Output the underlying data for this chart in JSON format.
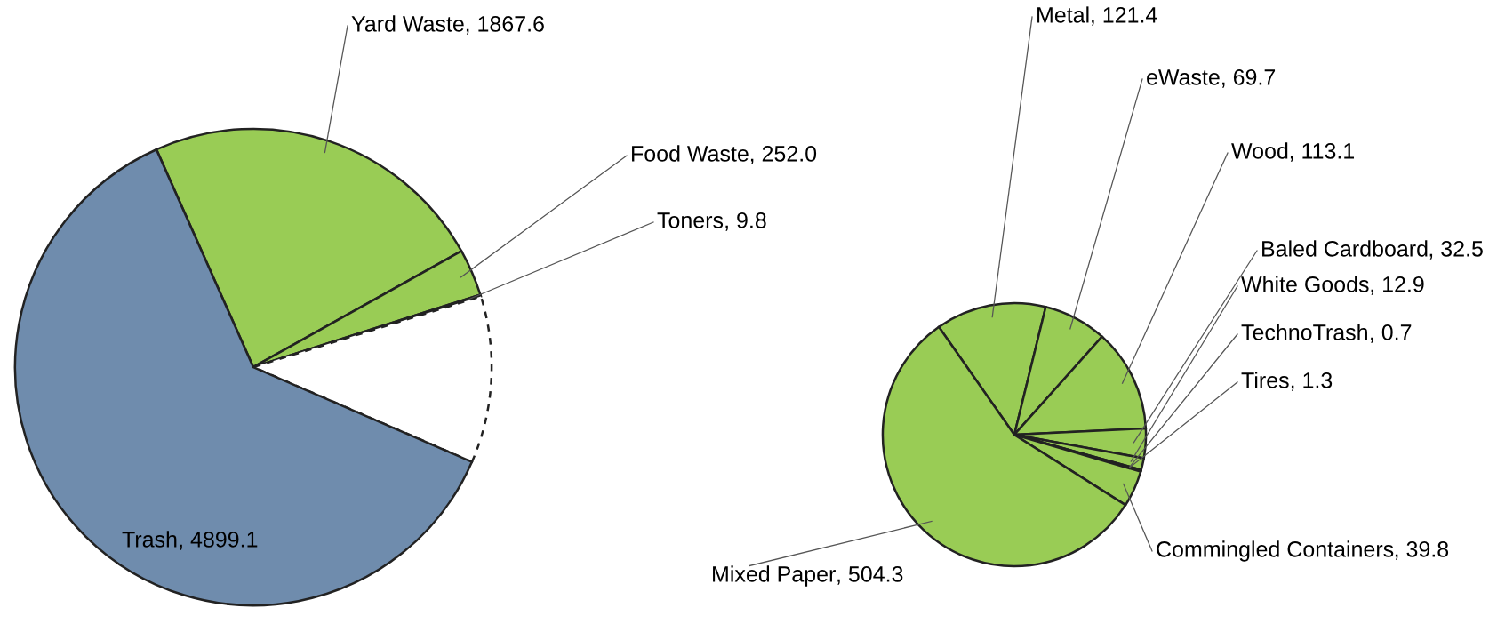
{
  "chart_data": [
    {
      "type": "pie",
      "categories": [
        "Yard Waste",
        "Food Waste",
        "Toners",
        null,
        "Trash"
      ],
      "values": [
        1867.6,
        252.0,
        9.8,
        895.7,
        4899.1
      ],
      "colors": [
        "#99cc55",
        "#99cc55",
        "#99cc55",
        "#ffffff",
        "#6f8cad"
      ],
      "value_labels": [
        ", 1867.6",
        ", 252.0",
        ", 9.8",
        null,
        ", 4899.1"
      ]
    },
    {
      "type": "pie",
      "categories": [
        "Metal",
        "eWaste",
        "Wood",
        "Baled Cardboard",
        "White Goods",
        "TechnoTrash",
        "Tires",
        "Commingled Containers",
        "Mixed Paper"
      ],
      "values": [
        121.4,
        69.7,
        113.1,
        32.5,
        12.9,
        0.7,
        1.3,
        39.8,
        504.3
      ],
      "colors": [
        "#99cc55",
        "#99cc55",
        "#99cc55",
        "#99cc55",
        "#99cc55",
        "#99cc55",
        "#99cc55",
        "#99cc55",
        "#99cc55"
      ],
      "value_labels": [
        ", 121.4",
        ", 69.7",
        ", 113.1",
        ", 32.5",
        ", 12.9",
        ", 0.7",
        ", 1.3",
        ", 39.8",
        ", 504.3"
      ]
    }
  ]
}
